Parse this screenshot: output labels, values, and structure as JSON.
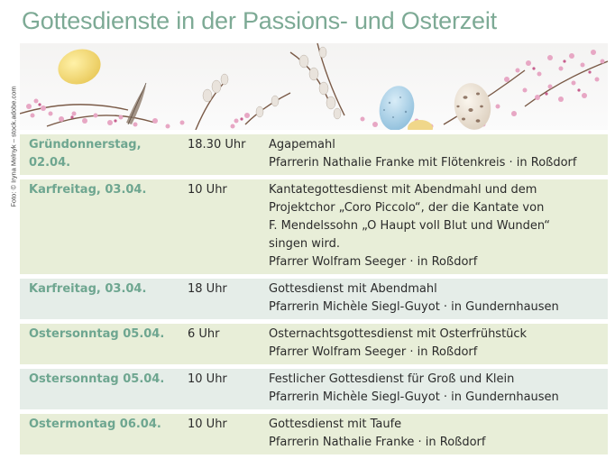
{
  "title": "Gottesdienste in der Passions- und Osterzeit",
  "photo_credit": "Foto: © Iryna Melnyk – stock.adobe.com",
  "colors": {
    "title": "#7daa95",
    "date": "#6ea690",
    "row_light": "#e8eed8",
    "row_teal": "#e5ede8"
  },
  "services": [
    {
      "date": "Gründonnerstag, 02.04.",
      "time": "18.30 Uhr",
      "lines": [
        "Agapemahl",
        "Pfarrerin Nathalie Franke mit Flötenkreis · in Roßdorf"
      ]
    },
    {
      "date": "Karfreitag, 03.04.",
      "time": "10 Uhr",
      "lines": [
        "Kantategottesdienst mit Abendmahl und dem",
        "Projektchor „Coro Piccolo“, der die Kantate von",
        "F. Mendelssohn „O Haupt voll Blut und Wunden“",
        "singen wird.",
        "Pfarrer Wolfram Seeger · in Roßdorf"
      ]
    },
    {
      "date": "Karfreitag, 03.04.",
      "time": "18 Uhr",
      "lines": [
        "Gottesdienst mit Abendmahl",
        "Pfarrerin Michèle Siegl-Guyot · in Gundernhausen"
      ]
    },
    {
      "date": "Ostersonntag 05.04.",
      "time": "6 Uhr",
      "lines": [
        "Osternachtsgottesdienst mit Osterfrühstück",
        "Pfarrer Wolfram Seeger · in Roßdorf"
      ]
    },
    {
      "date": "Ostersonntag 05.04.",
      "time": "10 Uhr",
      "lines": [
        "Festlicher Gottesdienst für Groß und Klein",
        "Pfarrerin Michèle Siegl-Guyot · in Gundernhausen"
      ]
    },
    {
      "date": "Ostermontag 06.04.",
      "time": "10 Uhr",
      "lines": [
        "Gottesdienst mit Taufe",
        "Pfarrerin Nathalie Franke · in Roßdorf"
      ]
    }
  ]
}
